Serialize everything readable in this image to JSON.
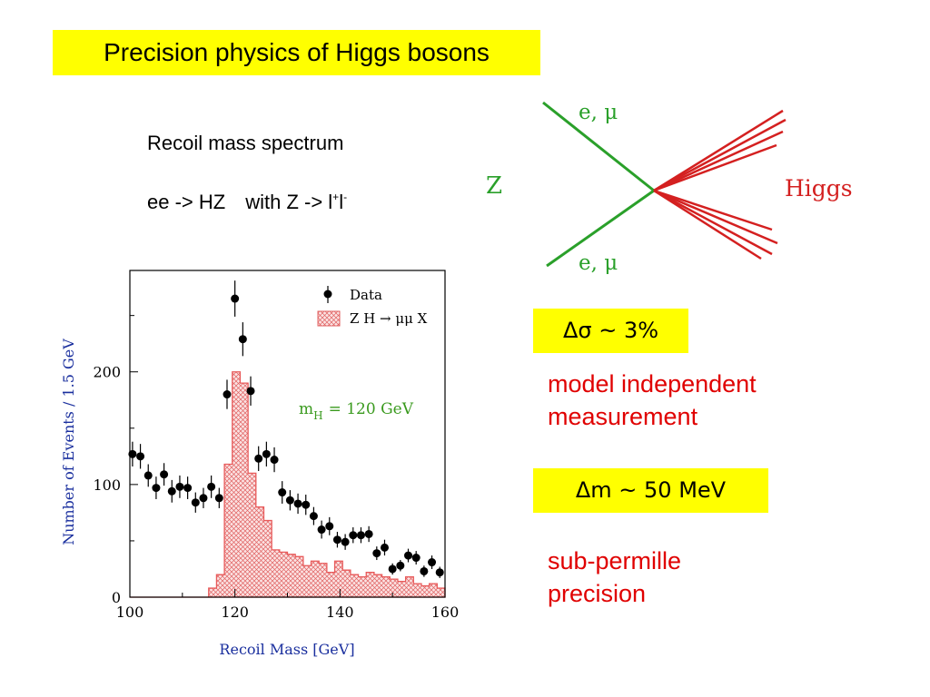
{
  "slide": {
    "title": "Precision physics of Higgs bosons",
    "subtitle": "Recoil mass spectrum",
    "reaction": {
      "part1": "ee -> HZ",
      "part2": "with  Z -> l",
      "plus": "+",
      "part3": "l",
      "minus": "-"
    },
    "highlight_color": "#ffff00",
    "note_color": "#e00000"
  },
  "feynman": {
    "label_z": "Z",
    "label_top": "e, μ",
    "label_bottom": "e, μ",
    "label_higgs": "Higgs",
    "lepton_color": "#2aa02a",
    "higgs_color": "#d42020"
  },
  "results": {
    "sigma_box": "Δσ ~ 3%",
    "sigma_note": [
      "model independent",
      "measurement"
    ],
    "mass_box": "Δm ~ 50 MeV",
    "mass_note": [
      "sub-permille",
      "precision"
    ]
  },
  "chart_data": {
    "type": "bar",
    "xlabel": "Recoil Mass  [GeV]",
    "ylabel": "Number of Events / 1.5 GeV",
    "xlim": [
      100,
      160
    ],
    "ylim": [
      0,
      290
    ],
    "xticks": [
      "100",
      "120",
      "140",
      "160"
    ],
    "yticks": [
      "0",
      "100",
      "200"
    ],
    "annotation": {
      "sym": "m",
      "sub": "H",
      "rest": "=  120  GeV"
    },
    "legend_position": "top-right",
    "legend": {
      "data": "Data",
      "signal": {
        "main": "Z H ",
        "arrow": "→",
        "tail": " μμ X"
      }
    },
    "signal_histogram": {
      "name": "Z H → μμ X",
      "color": "#e85a5a",
      "bin_width": 1.5,
      "edges": [
        100,
        101.5,
        103,
        104.5,
        106,
        107.5,
        109,
        110.5,
        112,
        113.5,
        115,
        116.5,
        118,
        119.5,
        121,
        122.5,
        124,
        125.5,
        127,
        128.5,
        130,
        131.5,
        133,
        134.5,
        136,
        137.5,
        139,
        140.5,
        142,
        143.5,
        145,
        146.5,
        148,
        149.5,
        151,
        152.5,
        154,
        155.5,
        157,
        158.5,
        160
      ],
      "values": [
        0,
        0,
        0,
        0,
        0,
        0,
        0,
        0,
        0,
        0,
        8,
        20,
        118,
        200,
        190,
        110,
        80,
        68,
        42,
        40,
        38,
        36,
        28,
        32,
        30,
        22,
        32,
        24,
        20,
        18,
        22,
        20,
        18,
        16,
        14,
        18,
        12,
        10,
        12,
        8
      ]
    },
    "data_points": {
      "name": "Data",
      "x": [
        100.5,
        102,
        103.5,
        105,
        106.5,
        108,
        109.5,
        111,
        112.5,
        114,
        115.5,
        117,
        118.5,
        120,
        121.5,
        123,
        124.5,
        126,
        127.5,
        129,
        130.5,
        132,
        133.5,
        135,
        136.5,
        138,
        139.5,
        141,
        142.5,
        144,
        145.5,
        147,
        148.5,
        150,
        151.5,
        153,
        154.5,
        156,
        157.5,
        159
      ],
      "y": [
        127,
        125,
        108,
        97,
        109,
        94,
        98,
        97,
        84,
        88,
        98,
        88,
        180,
        265,
        229,
        183,
        123,
        127,
        122,
        93,
        86,
        83,
        82,
        72,
        60,
        63,
        51,
        49,
        55,
        55,
        56,
        39,
        44,
        25,
        28,
        37,
        35,
        23,
        31,
        22
      ],
      "err": [
        11,
        11,
        10,
        10,
        10,
        10,
        10,
        10,
        9,
        9,
        10,
        9,
        13,
        16,
        15,
        13,
        11,
        11,
        11,
        10,
        9,
        9,
        9,
        8,
        8,
        8,
        7,
        7,
        7,
        7,
        7,
        6,
        7,
        5,
        5,
        6,
        6,
        5,
        6,
        5
      ]
    }
  }
}
